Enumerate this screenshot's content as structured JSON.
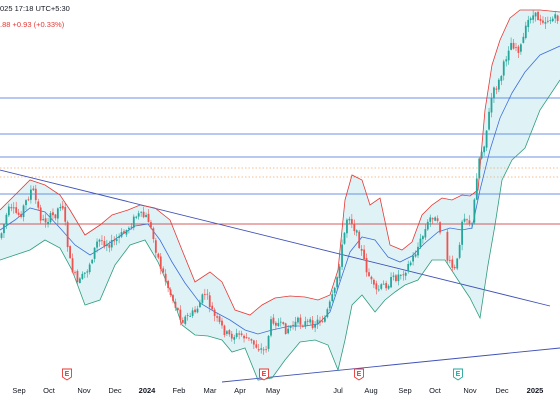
{
  "header": {
    "timestamp": "025 17:18 UTC+5:30",
    "change": ".88  +0.93 (+0.33%)"
  },
  "colors": {
    "up": "#26a69a",
    "down": "#ef5350",
    "upper_band": "#e53935",
    "mid_band": "#3f6fd8",
    "lower_band": "#2e9c7a",
    "band_fill": "#dff3f7",
    "hline_blue": "#3f6fd8",
    "hline_red": "#c62828",
    "hline_orange": "#f3a96f",
    "trend": "#3f51b5",
    "event_red": "#e53935",
    "event_green": "#26a69a"
  },
  "chart_data": {
    "type": "candlestick",
    "x_axis_labels": [
      "Sep",
      "Oct",
      "Nov",
      "Dec",
      "2024",
      "Feb",
      "Mar",
      "Apr",
      "May",
      "Jul",
      "Aug",
      "Sep",
      "Oct",
      "Nov",
      "Dec",
      "2025"
    ],
    "bold_labels": [
      "2024",
      "2025"
    ],
    "price_path": [
      {
        "t": 0,
        "v": 238
      },
      {
        "t": 8,
        "v": 210
      },
      {
        "t": 20,
        "v": 215
      },
      {
        "t": 32,
        "v": 188
      },
      {
        "t": 42,
        "v": 222
      },
      {
        "t": 55,
        "v": 215
      },
      {
        "t": 62,
        "v": 200
      },
      {
        "t": 70,
        "v": 262
      },
      {
        "t": 78,
        "v": 285
      },
      {
        "t": 88,
        "v": 268
      },
      {
        "t": 98,
        "v": 240
      },
      {
        "t": 112,
        "v": 244
      },
      {
        "t": 125,
        "v": 232
      },
      {
        "t": 137,
        "v": 215
      },
      {
        "t": 148,
        "v": 218
      },
      {
        "t": 160,
        "v": 265
      },
      {
        "t": 172,
        "v": 298
      },
      {
        "t": 182,
        "v": 320
      },
      {
        "t": 195,
        "v": 312
      },
      {
        "t": 205,
        "v": 293
      },
      {
        "t": 215,
        "v": 318
      },
      {
        "t": 228,
        "v": 336
      },
      {
        "t": 242,
        "v": 335
      },
      {
        "t": 255,
        "v": 345
      },
      {
        "t": 265,
        "v": 352
      },
      {
        "t": 272,
        "v": 318
      },
      {
        "t": 285,
        "v": 330
      },
      {
        "t": 298,
        "v": 322
      },
      {
        "t": 312,
        "v": 324
      },
      {
        "t": 325,
        "v": 318
      },
      {
        "t": 335,
        "v": 290
      },
      {
        "t": 342,
        "v": 248
      },
      {
        "t": 348,
        "v": 212
      },
      {
        "t": 356,
        "v": 232
      },
      {
        "t": 365,
        "v": 265
      },
      {
        "t": 375,
        "v": 292
      },
      {
        "t": 385,
        "v": 285
      },
      {
        "t": 395,
        "v": 278
      },
      {
        "t": 405,
        "v": 270
      },
      {
        "t": 412,
        "v": 260
      },
      {
        "t": 422,
        "v": 238
      },
      {
        "t": 432,
        "v": 214
      },
      {
        "t": 440,
        "v": 230
      },
      {
        "t": 448,
        "v": 262
      },
      {
        "t": 456,
        "v": 272
      },
      {
        "t": 463,
        "v": 212
      },
      {
        "t": 472,
        "v": 226
      },
      {
        "t": 478,
        "v": 162
      },
      {
        "t": 485,
        "v": 140
      },
      {
        "t": 492,
        "v": 95
      },
      {
        "t": 500,
        "v": 80
      },
      {
        "t": 510,
        "v": 42
      },
      {
        "t": 520,
        "v": 50
      },
      {
        "t": 530,
        "v": 15
      },
      {
        "t": 545,
        "v": 20
      },
      {
        "t": 560,
        "v": 18
      }
    ],
    "upper_band": [
      {
        "t": 0,
        "v": 210
      },
      {
        "t": 15,
        "v": 195
      },
      {
        "t": 30,
        "v": 180
      },
      {
        "t": 45,
        "v": 185
      },
      {
        "t": 60,
        "v": 195
      },
      {
        "t": 70,
        "v": 210
      },
      {
        "t": 85,
        "v": 235
      },
      {
        "t": 100,
        "v": 225
      },
      {
        "t": 112,
        "v": 215
      },
      {
        "t": 128,
        "v": 210
      },
      {
        "t": 140,
        "v": 205
      },
      {
        "t": 155,
        "v": 208
      },
      {
        "t": 170,
        "v": 220
      },
      {
        "t": 182,
        "v": 250
      },
      {
        "t": 195,
        "v": 282
      },
      {
        "t": 210,
        "v": 272
      },
      {
        "t": 222,
        "v": 282
      },
      {
        "t": 235,
        "v": 310
      },
      {
        "t": 250,
        "v": 315
      },
      {
        "t": 262,
        "v": 305
      },
      {
        "t": 275,
        "v": 298
      },
      {
        "t": 290,
        "v": 296
      },
      {
        "t": 305,
        "v": 297
      },
      {
        "t": 318,
        "v": 300
      },
      {
        "t": 330,
        "v": 295
      },
      {
        "t": 338,
        "v": 270
      },
      {
        "t": 345,
        "v": 200
      },
      {
        "t": 352,
        "v": 175
      },
      {
        "t": 362,
        "v": 180
      },
      {
        "t": 370,
        "v": 205
      },
      {
        "t": 380,
        "v": 198
      },
      {
        "t": 390,
        "v": 245
      },
      {
        "t": 402,
        "v": 250
      },
      {
        "t": 412,
        "v": 242
      },
      {
        "t": 422,
        "v": 215
      },
      {
        "t": 432,
        "v": 205
      },
      {
        "t": 442,
        "v": 198
      },
      {
        "t": 452,
        "v": 200
      },
      {
        "t": 462,
        "v": 195
      },
      {
        "t": 470,
        "v": 196
      },
      {
        "t": 478,
        "v": 190
      },
      {
        "t": 485,
        "v": 110
      },
      {
        "t": 492,
        "v": 65
      },
      {
        "t": 500,
        "v": 40
      },
      {
        "t": 510,
        "v": 18
      },
      {
        "t": 520,
        "v": 10
      },
      {
        "t": 540,
        "v": 10
      },
      {
        "t": 560,
        "v": 12
      }
    ],
    "mid_band": [
      {
        "t": 0,
        "v": 230
      },
      {
        "t": 15,
        "v": 220
      },
      {
        "t": 30,
        "v": 208
      },
      {
        "t": 45,
        "v": 212
      },
      {
        "t": 60,
        "v": 228
      },
      {
        "t": 75,
        "v": 245
      },
      {
        "t": 90,
        "v": 255
      },
      {
        "t": 105,
        "v": 246
      },
      {
        "t": 120,
        "v": 236
      },
      {
        "t": 135,
        "v": 226
      },
      {
        "t": 148,
        "v": 224
      },
      {
        "t": 160,
        "v": 240
      },
      {
        "t": 172,
        "v": 262
      },
      {
        "t": 185,
        "v": 283
      },
      {
        "t": 200,
        "v": 303
      },
      {
        "t": 215,
        "v": 312
      },
      {
        "t": 230,
        "v": 320
      },
      {
        "t": 245,
        "v": 330
      },
      {
        "t": 258,
        "v": 334
      },
      {
        "t": 272,
        "v": 330
      },
      {
        "t": 290,
        "v": 326
      },
      {
        "t": 305,
        "v": 326
      },
      {
        "t": 318,
        "v": 324
      },
      {
        "t": 330,
        "v": 312
      },
      {
        "t": 340,
        "v": 282
      },
      {
        "t": 350,
        "v": 252
      },
      {
        "t": 362,
        "v": 237
      },
      {
        "t": 375,
        "v": 240
      },
      {
        "t": 388,
        "v": 257
      },
      {
        "t": 400,
        "v": 262
      },
      {
        "t": 412,
        "v": 256
      },
      {
        "t": 425,
        "v": 243
      },
      {
        "t": 438,
        "v": 232
      },
      {
        "t": 450,
        "v": 228
      },
      {
        "t": 462,
        "v": 230
      },
      {
        "t": 472,
        "v": 228
      },
      {
        "t": 480,
        "v": 190
      },
      {
        "t": 490,
        "v": 150
      },
      {
        "t": 500,
        "v": 118
      },
      {
        "t": 512,
        "v": 93
      },
      {
        "t": 525,
        "v": 72
      },
      {
        "t": 540,
        "v": 55
      },
      {
        "t": 560,
        "v": 46
      }
    ],
    "lower_band": [
      {
        "t": 0,
        "v": 260
      },
      {
        "t": 15,
        "v": 255
      },
      {
        "t": 30,
        "v": 250
      },
      {
        "t": 45,
        "v": 240
      },
      {
        "t": 60,
        "v": 248
      },
      {
        "t": 72,
        "v": 270
      },
      {
        "t": 85,
        "v": 305
      },
      {
        "t": 100,
        "v": 300
      },
      {
        "t": 115,
        "v": 265
      },
      {
        "t": 130,
        "v": 245
      },
      {
        "t": 145,
        "v": 240
      },
      {
        "t": 158,
        "v": 262
      },
      {
        "t": 170,
        "v": 290
      },
      {
        "t": 182,
        "v": 325
      },
      {
        "t": 195,
        "v": 335
      },
      {
        "t": 208,
        "v": 336
      },
      {
        "t": 222,
        "v": 340
      },
      {
        "t": 232,
        "v": 352
      },
      {
        "t": 245,
        "v": 348
      },
      {
        "t": 258,
        "v": 380
      },
      {
        "t": 272,
        "v": 378
      },
      {
        "t": 285,
        "v": 360
      },
      {
        "t": 300,
        "v": 342
      },
      {
        "t": 315,
        "v": 340
      },
      {
        "t": 328,
        "v": 345
      },
      {
        "t": 338,
        "v": 370
      },
      {
        "t": 345,
        "v": 340
      },
      {
        "t": 352,
        "v": 305
      },
      {
        "t": 362,
        "v": 295
      },
      {
        "t": 375,
        "v": 312
      },
      {
        "t": 385,
        "v": 300
      },
      {
        "t": 395,
        "v": 292
      },
      {
        "t": 405,
        "v": 285
      },
      {
        "t": 418,
        "v": 280
      },
      {
        "t": 432,
        "v": 260
      },
      {
        "t": 445,
        "v": 260
      },
      {
        "t": 458,
        "v": 280
      },
      {
        "t": 470,
        "v": 298
      },
      {
        "t": 480,
        "v": 318
      },
      {
        "t": 488,
        "v": 265
      },
      {
        "t": 495,
        "v": 225
      },
      {
        "t": 502,
        "v": 180
      },
      {
        "t": 512,
        "v": 160
      },
      {
        "t": 525,
        "v": 148
      },
      {
        "t": 540,
        "v": 110
      },
      {
        "t": 560,
        "v": 80
      }
    ]
  }
}
